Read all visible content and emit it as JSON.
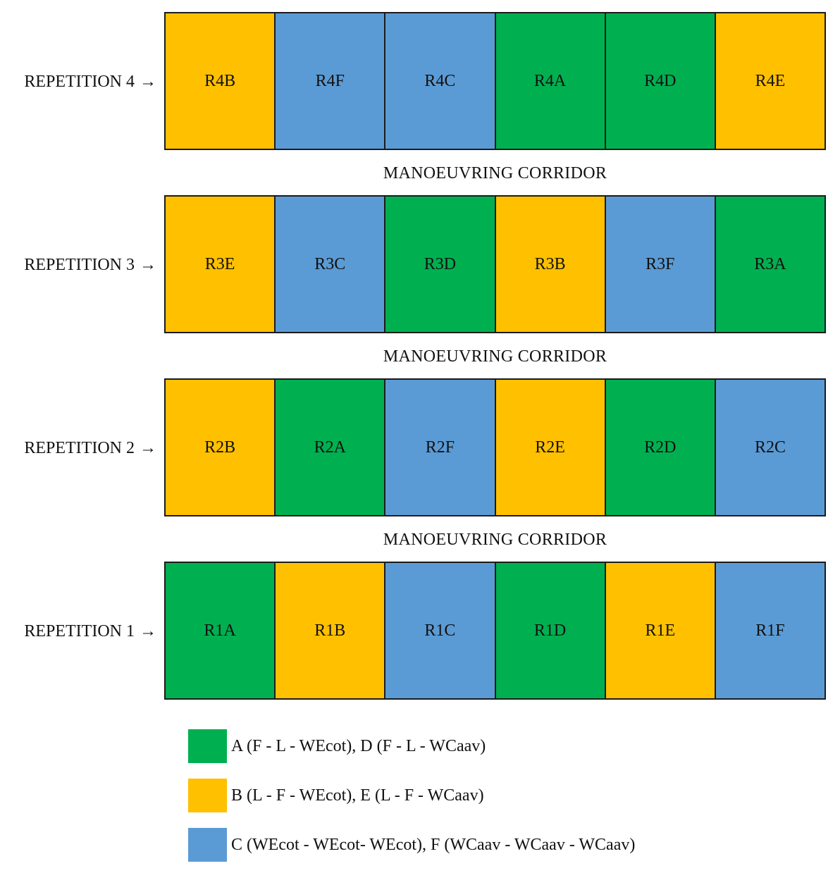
{
  "colors": {
    "green": "#00b050",
    "yellow": "#ffc000",
    "blue": "#5b9bd5"
  },
  "corridor_label": "MANOEUVRING CORRIDOR",
  "repetitions": [
    {
      "label": "REPETITION 4",
      "arrow": "→",
      "plots": [
        {
          "name": "R4B",
          "color": "yellow"
        },
        {
          "name": "R4F",
          "color": "blue"
        },
        {
          "name": "R4C",
          "color": "blue"
        },
        {
          "name": "R4A",
          "color": "green"
        },
        {
          "name": "R4D",
          "color": "green"
        },
        {
          "name": "R4E",
          "color": "yellow"
        }
      ]
    },
    {
      "label": "REPETITION 3",
      "arrow": "→",
      "plots": [
        {
          "name": "R3E",
          "color": "yellow"
        },
        {
          "name": "R3C",
          "color": "blue"
        },
        {
          "name": "R3D",
          "color": "green"
        },
        {
          "name": "R3B",
          "color": "yellow"
        },
        {
          "name": "R3F",
          "color": "blue"
        },
        {
          "name": "R3A",
          "color": "green"
        }
      ]
    },
    {
      "label": "REPETITION 2",
      "arrow": "→",
      "plots": [
        {
          "name": "R2B",
          "color": "yellow"
        },
        {
          "name": "R2A",
          "color": "green"
        },
        {
          "name": "R2F",
          "color": "blue"
        },
        {
          "name": "R2E",
          "color": "yellow"
        },
        {
          "name": "R2D",
          "color": "green"
        },
        {
          "name": "R2C",
          "color": "blue"
        }
      ]
    },
    {
      "label": "REPETITION 1",
      "arrow": "→",
      "plots": [
        {
          "name": "R1A",
          "color": "green"
        },
        {
          "name": "R1B",
          "color": "yellow"
        },
        {
          "name": "R1C",
          "color": "blue"
        },
        {
          "name": "R1D",
          "color": "green"
        },
        {
          "name": "R1E",
          "color": "yellow"
        },
        {
          "name": "R1F",
          "color": "blue"
        }
      ]
    }
  ],
  "legend": [
    {
      "color": "green",
      "text": "A (F - L - WEcot), D (F - L - WCaav)"
    },
    {
      "color": "yellow",
      "text": "B (L - F - WEcot), E (L - F - WCaav)"
    },
    {
      "color": "blue",
      "text": "C (WEcot - WEcot- WEcot), F (WCaav - WCaav - WCaav)"
    }
  ]
}
